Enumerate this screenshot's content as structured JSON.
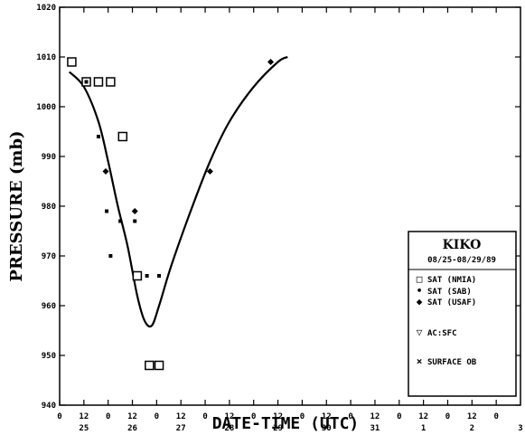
{
  "chart_data": {
    "type": "scatter",
    "xlabel": "DATE-TIME (UTC)",
    "ylabel": "PRESSURE (mb)",
    "xlim": [
      0,
      9
    ],
    "ylim": [
      940,
      1020
    ],
    "x_unit": "days from 25 Aug 1989 00 UTC",
    "y_ticks": [
      "1020",
      "1010",
      "1000",
      "990",
      "980",
      "970",
      "960",
      "950",
      "940"
    ],
    "x_ticks": [
      {
        "x": 0.0,
        "label": "0"
      },
      {
        "x": 0.5,
        "label": "12"
      },
      {
        "x": 1.0,
        "label": "0"
      },
      {
        "x": 1.5,
        "label": "12"
      },
      {
        "x": 2.0,
        "label": "0"
      },
      {
        "x": 2.5,
        "label": "12"
      },
      {
        "x": 3.0,
        "label": "0"
      },
      {
        "x": 3.5,
        "label": "12"
      },
      {
        "x": 4.0,
        "label": "0"
      },
      {
        "x": 4.5,
        "label": "12"
      },
      {
        "x": 5.0,
        "label": "0"
      },
      {
        "x": 5.5,
        "label": "12"
      },
      {
        "x": 6.0,
        "label": "0"
      },
      {
        "x": 6.5,
        "label": "12"
      },
      {
        "x": 7.0,
        "label": "0"
      },
      {
        "x": 7.5,
        "label": "12"
      },
      {
        "x": 8.0,
        "label": "0"
      },
      {
        "x": 8.5,
        "label": "12"
      },
      {
        "x": 9.0,
        "label": "0"
      }
    ],
    "date_labels": [
      {
        "x": 0.5,
        "label": "25"
      },
      {
        "x": 1.5,
        "label": "26"
      },
      {
        "x": 2.5,
        "label": "27"
      },
      {
        "x": 3.5,
        "label": "28"
      },
      {
        "x": 4.5,
        "label": "29"
      },
      {
        "x": 5.5,
        "label": "30"
      },
      {
        "x": 6.5,
        "label": "31"
      },
      {
        "x": 7.5,
        "label": "1"
      },
      {
        "x": 8.5,
        "label": "2"
      },
      {
        "x": 9.5,
        "label": "3"
      }
    ],
    "series": [
      {
        "name": "SAT (NMIA)",
        "marker": "square",
        "points": [
          {
            "x": 0.25,
            "y": 1009
          },
          {
            "x": 0.55,
            "y": 1005
          },
          {
            "x": 0.8,
            "y": 1005
          },
          {
            "x": 1.05,
            "y": 1005
          },
          {
            "x": 1.3,
            "y": 994
          },
          {
            "x": 1.6,
            "y": 966
          },
          {
            "x": 1.85,
            "y": 948
          },
          {
            "x": 2.05,
            "y": 948
          }
        ]
      },
      {
        "name": "SAT (SAB)",
        "marker": "dot",
        "points": [
          {
            "x": 0.55,
            "y": 1005
          },
          {
            "x": 0.8,
            "y": 994
          },
          {
            "x": 0.97,
            "y": 979
          },
          {
            "x": 1.05,
            "y": 970
          },
          {
            "x": 1.25,
            "y": 977
          },
          {
            "x": 1.55,
            "y": 977
          },
          {
            "x": 1.8,
            "y": 966
          },
          {
            "x": 2.05,
            "y": 966
          }
        ]
      },
      {
        "name": "SAT (USAF)",
        "marker": "diamond",
        "points": [
          {
            "x": 0.95,
            "y": 987
          },
          {
            "x": 1.55,
            "y": 979
          },
          {
            "x": 3.1,
            "y": 987
          },
          {
            "x": 4.35,
            "y": 1009
          }
        ]
      }
    ],
    "fit_curve": {
      "points": [
        {
          "x": 0.2,
          "y": 1007
        },
        {
          "x": 0.5,
          "y": 1004
        },
        {
          "x": 0.8,
          "y": 997
        },
        {
          "x": 1.0,
          "y": 989
        },
        {
          "x": 1.2,
          "y": 980
        },
        {
          "x": 1.4,
          "y": 972
        },
        {
          "x": 1.6,
          "y": 962
        },
        {
          "x": 1.75,
          "y": 957
        },
        {
          "x": 1.9,
          "y": 956
        },
        {
          "x": 2.05,
          "y": 960
        },
        {
          "x": 2.3,
          "y": 968
        },
        {
          "x": 2.7,
          "y": 979
        },
        {
          "x": 3.1,
          "y": 989
        },
        {
          "x": 3.5,
          "y": 997
        },
        {
          "x": 4.0,
          "y": 1004
        },
        {
          "x": 4.5,
          "y": 1009
        },
        {
          "x": 4.7,
          "y": 1010
        }
      ]
    },
    "legend": {
      "placement": "lower-right",
      "title": "KIKO",
      "date_range": "08/25-08/29/89",
      "entries": [
        {
          "symbol": "□",
          "label": "SAT (NMIA)"
        },
        {
          "symbol": "•",
          "label": "SAT (SAB)"
        },
        {
          "symbol": "◆",
          "label": "SAT (USAF)"
        },
        {
          "symbol": "▽",
          "label": "AC:SFC"
        },
        {
          "symbol": "×",
          "label": "SURFACE OB"
        }
      ]
    },
    "grid": false
  }
}
